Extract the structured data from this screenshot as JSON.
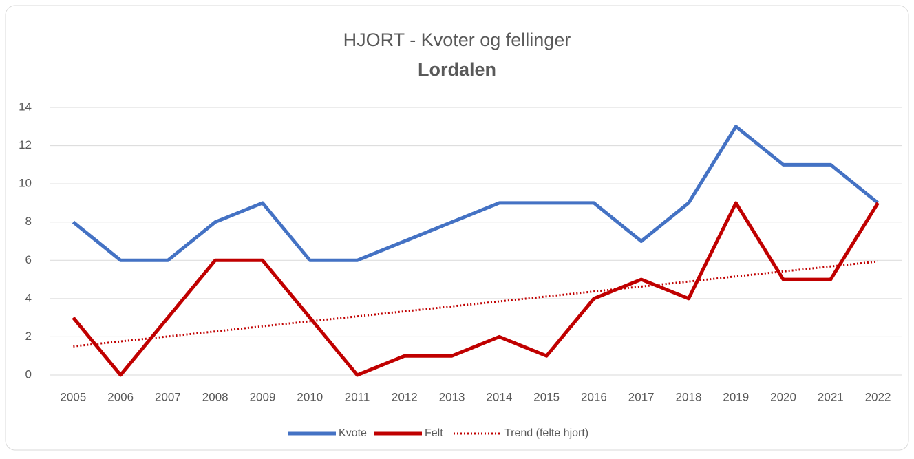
{
  "chart_data": {
    "type": "line",
    "title": "HJORT - Kvoter og fellinger",
    "subtitle": "Lordalen",
    "categories": [
      "2005",
      "2006",
      "2007",
      "2008",
      "2009",
      "2010",
      "2011",
      "2012",
      "2013",
      "2014",
      "2015",
      "2016",
      "2017",
      "2018",
      "2019",
      "2020",
      "2021",
      "2022"
    ],
    "series": [
      {
        "name": "Kvote",
        "color": "#4472c4",
        "style": "solid",
        "values": [
          8,
          6,
          6,
          8,
          9,
          6,
          6,
          7,
          8,
          9,
          9,
          9,
          7,
          9,
          13,
          11,
          11,
          9
        ]
      },
      {
        "name": "Felt",
        "color": "#c00000",
        "style": "solid",
        "values": [
          3,
          0,
          3,
          6,
          6,
          3,
          0,
          1,
          1,
          2,
          1,
          4,
          5,
          4,
          9,
          5,
          5,
          9
        ]
      },
      {
        "name": "Trend (felte hjort)",
        "color": "#c00000",
        "style": "dotted",
        "values": [
          1.5,
          1.76,
          2.02,
          2.28,
          2.55,
          2.81,
          3.07,
          3.33,
          3.59,
          3.85,
          4.11,
          4.37,
          4.63,
          4.89,
          5.16,
          5.42,
          5.68,
          5.94
        ]
      }
    ],
    "ylim": [
      0,
      14
    ],
    "yticks": [
      0,
      2,
      4,
      6,
      8,
      10,
      12,
      14
    ],
    "grid": true,
    "legend": "bottom"
  }
}
